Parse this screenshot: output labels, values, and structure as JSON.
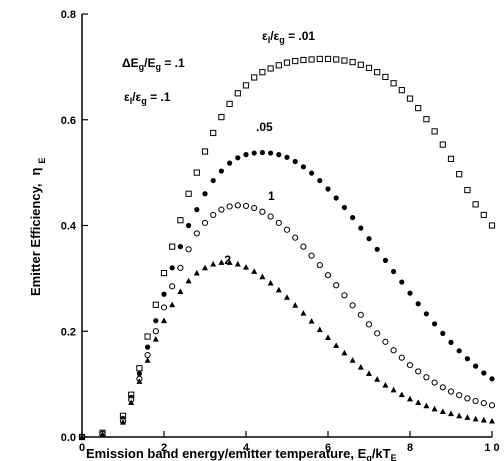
{
  "chart_data": {
    "type": "scatter",
    "xlabel": "Emission band  energy/emitter temperature, E",
    "xlabel_sub": "g",
    "xlabel_tail": "/kT",
    "xlabel_sub2": "E",
    "ylabel": "Emitter   Efficiency,",
    "ylabel_symbol": "η",
    "ylabel_sub": "E",
    "xlim": [
      0,
      10
    ],
    "ylim": [
      0,
      0.8
    ],
    "x_ticks": [
      0,
      2,
      4,
      6,
      8,
      10
    ],
    "x_tick_labels": [
      "0",
      "2",
      "4",
      "6",
      "8",
      "1 0"
    ],
    "y_ticks": [
      0,
      0.2,
      0.4,
      0.6,
      0.8
    ],
    "y_tick_labels": [
      "0.0",
      "0.2",
      "0.4",
      "0.6",
      "0.8"
    ],
    "grid": false,
    "annotations": {
      "delta_e": {
        "a": "ΔE",
        "b": "g",
        "c": "/E",
        "d": "g",
        "e": " = .1"
      },
      "eps_ratio": {
        "a": "ε",
        "b": "l",
        "c": "/ε",
        "d": "g",
        "e": " = .1"
      },
      "top_eps": {
        "a": "ε",
        "b": "l",
        "c": "/ε",
        "d": "g",
        "e": " = .01"
      }
    },
    "series": [
      {
        "label": "",
        "marker": "square-open",
        "x": [
          0,
          0.5,
          1,
          1.2,
          1.4,
          1.6,
          1.8,
          2,
          2.2,
          2.4,
          2.6,
          2.8,
          3,
          3.2,
          3.4,
          3.6,
          3.8,
          4,
          4.2,
          4.4,
          4.6,
          4.8,
          5,
          5.2,
          5.4,
          5.6,
          5.8,
          6,
          6.2,
          6.4,
          6.6,
          6.8,
          7,
          7.2,
          7.4,
          7.6,
          7.8,
          8,
          8.2,
          8.4,
          8.6,
          8.8,
          9,
          9.2,
          9.4,
          9.6,
          9.8,
          10
        ],
        "y": [
          0,
          0.008,
          0.04,
          0.08,
          0.13,
          0.19,
          0.25,
          0.31,
          0.36,
          0.41,
          0.46,
          0.5,
          0.54,
          0.575,
          0.605,
          0.63,
          0.65,
          0.665,
          0.68,
          0.69,
          0.697,
          0.703,
          0.708,
          0.711,
          0.713,
          0.714,
          0.715,
          0.715,
          0.714,
          0.712,
          0.709,
          0.704,
          0.698,
          0.69,
          0.681,
          0.669,
          0.656,
          0.64,
          0.622,
          0.601,
          0.578,
          0.553,
          0.526,
          0.497,
          0.467,
          0.44,
          0.42,
          0.4
        ]
      },
      {
        "label": ".05",
        "marker": "circle-filled",
        "x": [
          0,
          0.5,
          1,
          1.2,
          1.4,
          1.6,
          1.8,
          2,
          2.2,
          2.4,
          2.6,
          2.8,
          3,
          3.2,
          3.4,
          3.6,
          3.8,
          4,
          4.2,
          4.4,
          4.6,
          4.8,
          5,
          5.2,
          5.4,
          5.6,
          5.8,
          6,
          6.2,
          6.4,
          6.6,
          6.8,
          7,
          7.2,
          7.4,
          7.6,
          7.8,
          8,
          8.2,
          8.4,
          8.6,
          8.8,
          9,
          9.2,
          9.4,
          9.6,
          9.8,
          10
        ],
        "y": [
          0,
          0.007,
          0.035,
          0.075,
          0.12,
          0.17,
          0.22,
          0.27,
          0.32,
          0.36,
          0.4,
          0.43,
          0.46,
          0.485,
          0.503,
          0.518,
          0.528,
          0.534,
          0.537,
          0.538,
          0.537,
          0.534,
          0.529,
          0.521,
          0.511,
          0.499,
          0.485,
          0.469,
          0.452,
          0.434,
          0.415,
          0.395,
          0.375,
          0.355,
          0.334,
          0.313,
          0.293,
          0.272,
          0.252,
          0.233,
          0.214,
          0.196,
          0.179,
          0.163,
          0.148,
          0.134,
          0.121,
          0.11
        ]
      },
      {
        "label": "1",
        "marker": "circle-open",
        "x": [
          0,
          0.5,
          1,
          1.2,
          1.4,
          1.6,
          1.8,
          2,
          2.2,
          2.4,
          2.6,
          2.8,
          3,
          3.2,
          3.4,
          3.6,
          3.8,
          4,
          4.2,
          4.4,
          4.6,
          4.8,
          5,
          5.2,
          5.4,
          5.6,
          5.8,
          6,
          6.2,
          6.4,
          6.6,
          6.8,
          7,
          7.2,
          7.4,
          7.6,
          7.8,
          8,
          8.2,
          8.4,
          8.6,
          8.8,
          9,
          9.2,
          9.4,
          9.6,
          9.8,
          10
        ],
        "y": [
          0,
          0.006,
          0.03,
          0.07,
          0.11,
          0.155,
          0.2,
          0.245,
          0.285,
          0.32,
          0.355,
          0.385,
          0.405,
          0.42,
          0.43,
          0.436,
          0.438,
          0.437,
          0.433,
          0.426,
          0.417,
          0.405,
          0.392,
          0.377,
          0.36,
          0.343,
          0.325,
          0.306,
          0.287,
          0.268,
          0.249,
          0.231,
          0.213,
          0.196,
          0.18,
          0.164,
          0.15,
          0.136,
          0.124,
          0.113,
          0.103,
          0.094,
          0.086,
          0.079,
          0.073,
          0.068,
          0.064,
          0.06
        ]
      },
      {
        "label": ".2",
        "marker": "triangle-filled",
        "x": [
          0,
          0.5,
          1,
          1.2,
          1.4,
          1.6,
          1.8,
          2,
          2.2,
          2.4,
          2.6,
          2.8,
          3,
          3.2,
          3.4,
          3.6,
          3.8,
          4,
          4.2,
          4.4,
          4.6,
          4.8,
          5,
          5.2,
          5.4,
          5.6,
          5.8,
          6,
          6.2,
          6.4,
          6.6,
          6.8,
          7,
          7.2,
          7.4,
          7.6,
          7.8,
          8,
          8.2,
          8.4,
          8.6,
          8.8,
          9,
          9.2,
          9.4,
          9.6,
          9.8,
          10
        ],
        "y": [
          0,
          0.005,
          0.028,
          0.065,
          0.105,
          0.145,
          0.185,
          0.22,
          0.25,
          0.275,
          0.295,
          0.31,
          0.32,
          0.327,
          0.33,
          0.33,
          0.327,
          0.321,
          0.313,
          0.303,
          0.291,
          0.278,
          0.264,
          0.249,
          0.234,
          0.219,
          0.203,
          0.188,
          0.173,
          0.159,
          0.145,
          0.132,
          0.12,
          0.109,
          0.098,
          0.089,
          0.08,
          0.072,
          0.065,
          0.059,
          0.053,
          0.048,
          0.044,
          0.04,
          0.037,
          0.034,
          0.032,
          0.03
        ]
      }
    ]
  }
}
